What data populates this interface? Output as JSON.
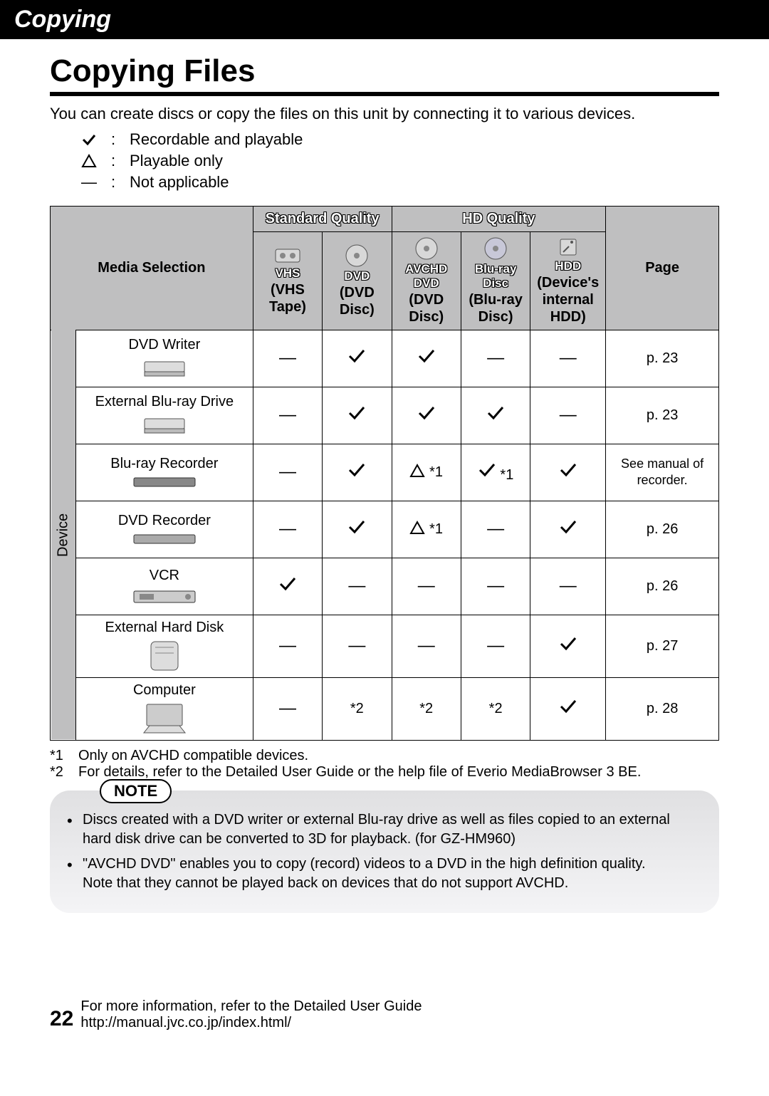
{
  "section_bar": "Copying",
  "title": "Copying Files",
  "intro": "You can create discs or copy the files on this unit by connecting it to various devices.",
  "legend": {
    "check": "Recordable and playable",
    "triangle": "Playable only",
    "dash": "Not applicable"
  },
  "table": {
    "media_selection": "Media Selection",
    "quality_groups": {
      "standard": "Standard Quality",
      "hd": "HD Quality"
    },
    "page_header": "Page",
    "device_side": "Device",
    "media": {
      "vhs": {
        "label": "VHS",
        "sub": "(VHS Tape)"
      },
      "dvd": {
        "label": "DVD",
        "sub": "(DVD Disc)"
      },
      "avdvd": {
        "label": "AVCHD DVD",
        "sub": "(DVD Disc)"
      },
      "bluray": {
        "label": "Blu-ray Disc",
        "sub": "(Blu-ray Disc)"
      },
      "hdd": {
        "label": "HDD",
        "sub": "(Device's internal HDD)"
      }
    },
    "rows": [
      {
        "name": "DVD Writer",
        "cells": [
          "dash",
          "check",
          "check",
          "dash",
          "dash"
        ],
        "page": "p. 23"
      },
      {
        "name": "External Blu-ray Drive",
        "cells": [
          "dash",
          "check",
          "check",
          "check",
          "dash"
        ],
        "page": "p. 23"
      },
      {
        "name": "Blu-ray Recorder",
        "cells": [
          "dash",
          "check",
          "tri*1",
          "check*1",
          "check"
        ],
        "page": "See manual of recorder."
      },
      {
        "name": "DVD Recorder",
        "cells": [
          "dash",
          "check",
          "tri*1",
          "dash",
          "check"
        ],
        "page": "p. 26"
      },
      {
        "name": "VCR",
        "cells": [
          "check",
          "dash",
          "dash",
          "dash",
          "dash"
        ],
        "page": "p. 26"
      },
      {
        "name": "External Hard Disk",
        "cells": [
          "dash",
          "dash",
          "dash",
          "dash",
          "check"
        ],
        "page": "p. 27"
      },
      {
        "name": "Computer",
        "cells": [
          "dash",
          "*2",
          "*2",
          "*2",
          "check"
        ],
        "page": "p. 28"
      }
    ]
  },
  "footnotes": {
    "f1": {
      "num": "*1",
      "text": "Only on AVCHD compatible devices."
    },
    "f2": {
      "num": "*2",
      "text": "For details, refer to the Detailed User Guide or the help file of Everio MediaBrowser 3 BE."
    }
  },
  "note": {
    "badge": "NOTE",
    "items": [
      "Discs created with a DVD writer or external Blu-ray drive as well as files copied to an external hard disk drive can be converted to 3D for playback. (for GZ-HM960)",
      "\"AVCHD DVD\" enables you to copy (record) videos to a DVD in the high definition quality.\nNote that they cannot be played back on devices that do not support AVCHD."
    ]
  },
  "footer": {
    "page_number": "22",
    "line1": "For more information, refer to the Detailed User Guide",
    "line2": "http://manual.jvc.co.jp/index.html/"
  },
  "colors": {
    "header_bg": "#bfbfc0",
    "notebox_bg_top": "#e0e0e2",
    "notebox_bg_bot": "#f4f4f6"
  }
}
